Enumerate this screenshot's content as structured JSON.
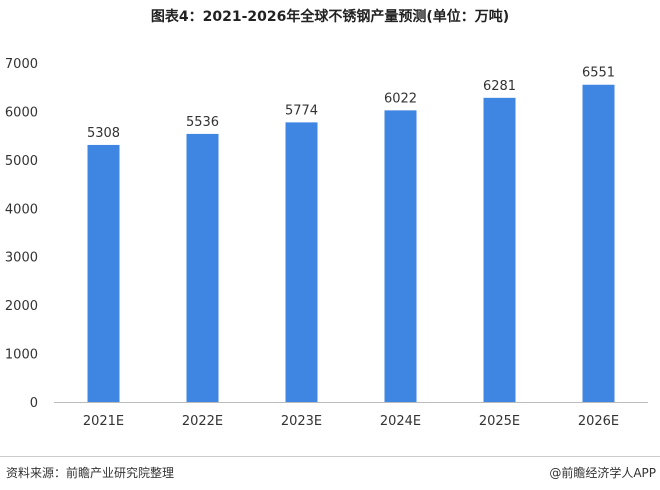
{
  "chart_data": {
    "type": "bar",
    "title": "图表4：2021-2026年全球不锈钢产量预测(单位：万吨)",
    "categories": [
      "2021E",
      "2022E",
      "2023E",
      "2024E",
      "2025E",
      "2026E"
    ],
    "values": [
      5308,
      5536,
      5774,
      6022,
      6281,
      6551
    ],
    "ylim": [
      0,
      7000
    ],
    "yticks": [
      0,
      1000,
      2000,
      3000,
      4000,
      5000,
      6000,
      7000
    ],
    "xlabel": "",
    "ylabel": "",
    "grid": false,
    "bar_color": "#3f85e2"
  },
  "footer": {
    "source": "资料来源：前瞻产业研究院整理",
    "credit": "@前瞻经济学人APP"
  }
}
